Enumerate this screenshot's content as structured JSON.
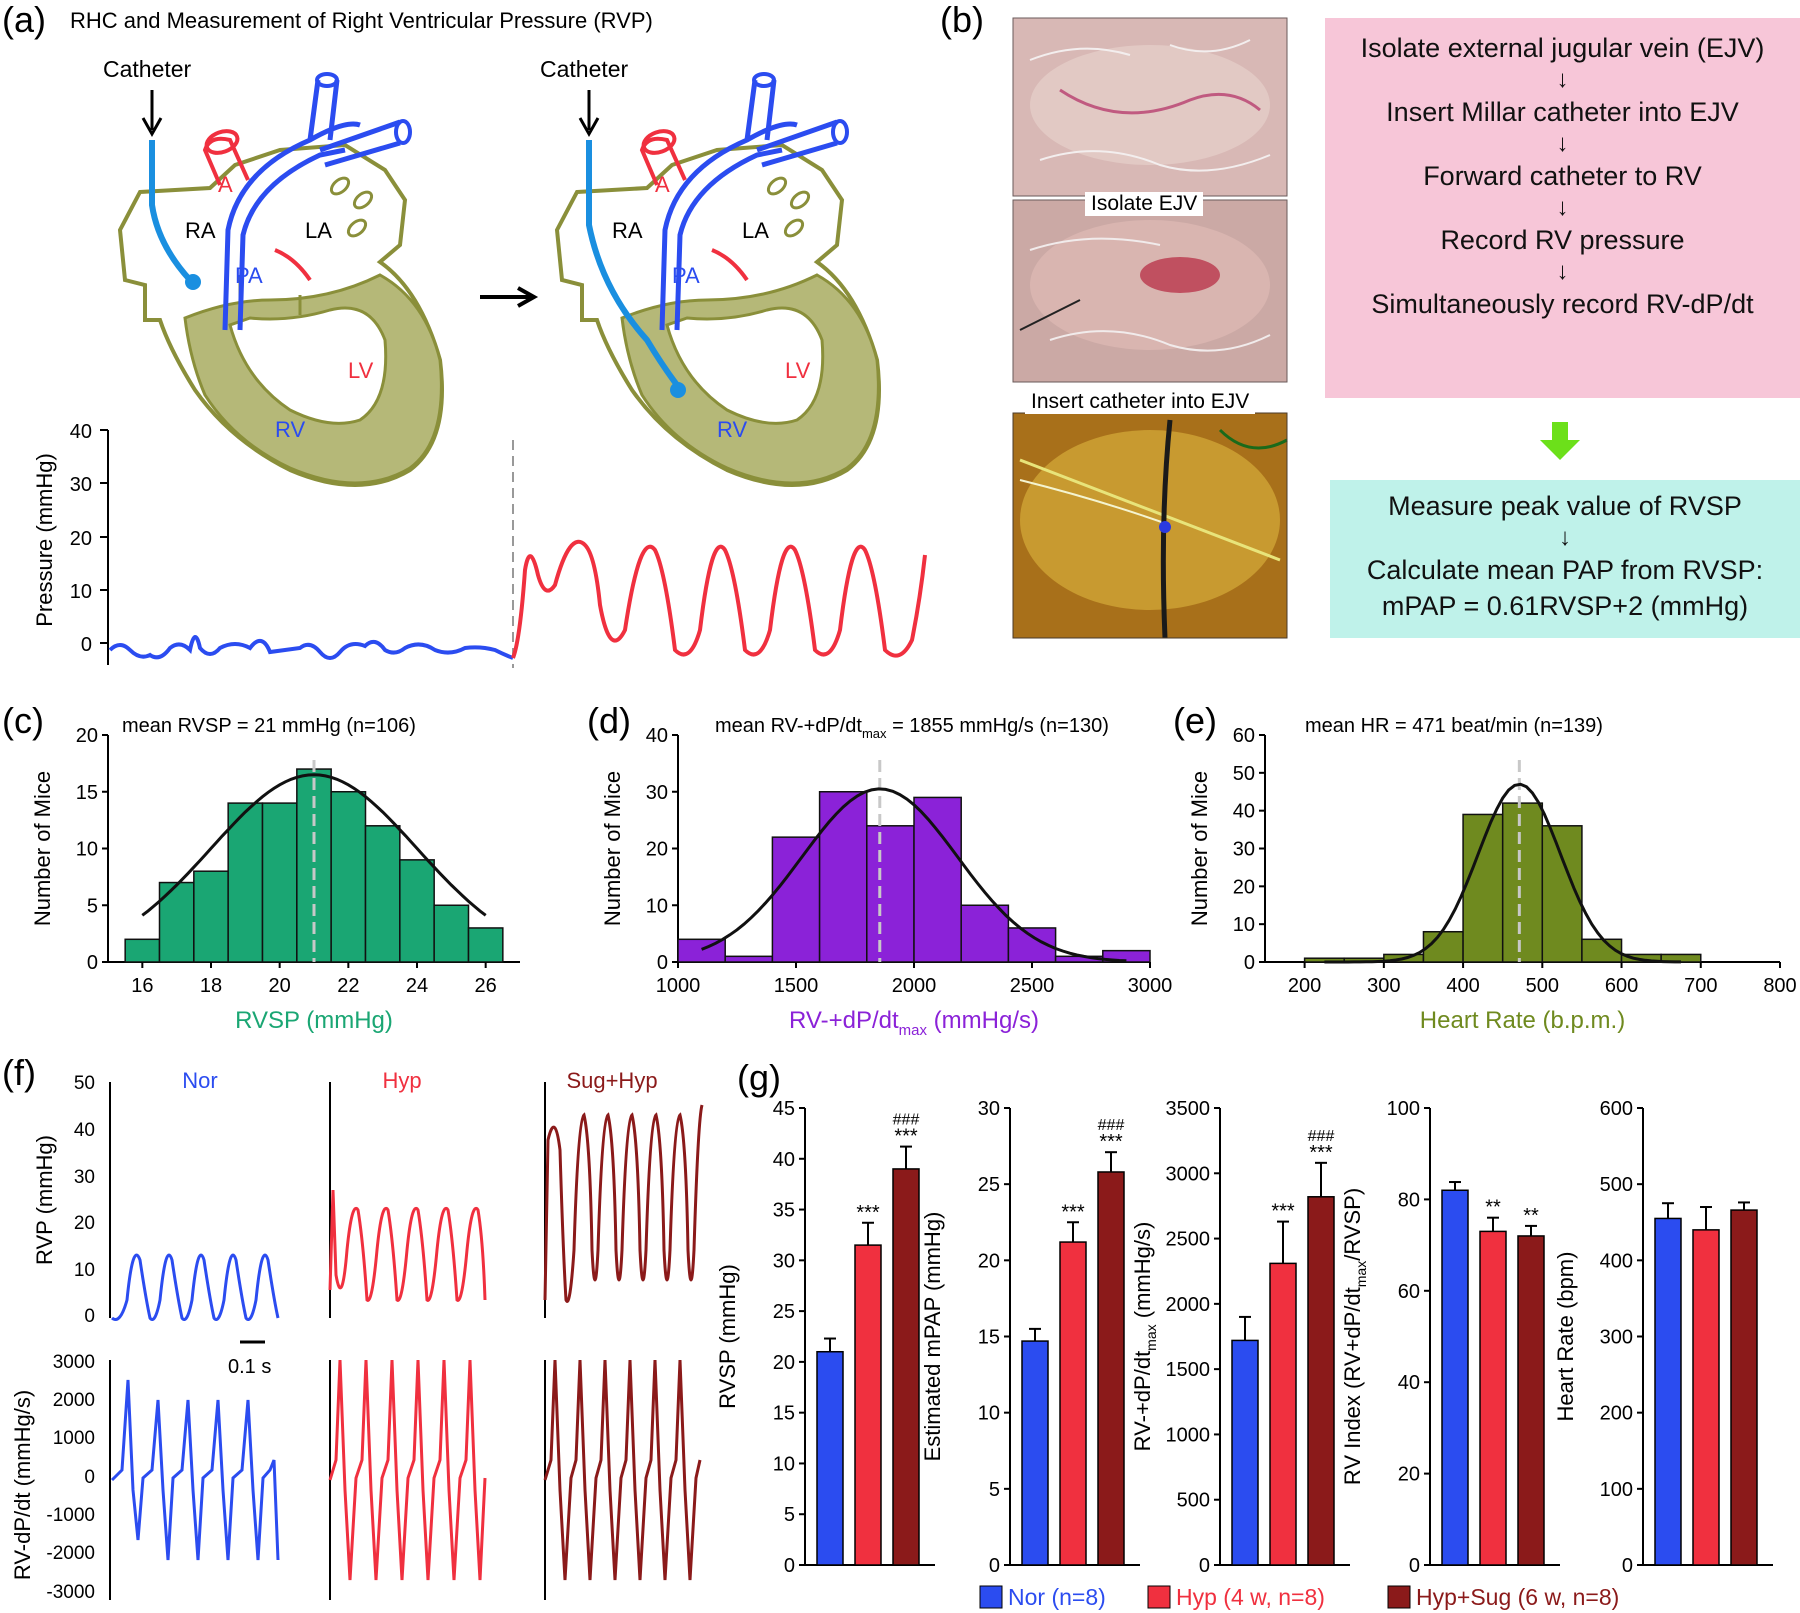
{
  "panels": {
    "a": {
      "label": "(a)",
      "title": "RHC and Measurement of Right Ventricular Pressure (RVP)",
      "catheter_label": "Catheter",
      "chambers": {
        "A": "A",
        "RA": "RA",
        "LA": "LA",
        "PA": "PA",
        "LV": "LV",
        "RV": "RV"
      },
      "pressure_axis": {
        "label": "Pressure (mmHg)",
        "ticks": [
          "40",
          "30",
          "20",
          "10",
          "0"
        ]
      }
    },
    "b": {
      "label": "(b)",
      "photo_captions": [
        "Isolate EJV",
        "Insert catheter into EJV"
      ],
      "protocol": [
        "Isolate external jugular vein (EJV)",
        "Insert Millar catheter into EJV",
        "Forward catheter to RV",
        "Record RV pressure",
        "Simultaneously record RV-dP/dt"
      ],
      "analysis": [
        "Measure peak value of RVSP",
        "Calculate mean PAP from RVSP:",
        "mPAP = 0.61RVSP+2 (mmHg)"
      ],
      "arrow": "↓",
      "transition_arrow_color": "#6ce01a"
    },
    "c": {
      "label": "(c)",
      "annotation": "mean RVSP = 21 mmHg (n=106)"
    },
    "d": {
      "label": "(d)",
      "annotation_prefix": "mean RV-+dP/dt",
      "annotation_sub": "max",
      "annotation_suffix": " = 1855 mmHg/s (n=130)"
    },
    "e": {
      "label": "(e)",
      "annotation": "mean HR = 471 beat/min (n=139)"
    },
    "f": {
      "label": "(f)",
      "groups": [
        "Nor",
        "Hyp",
        "Sug+Hyp"
      ],
      "rvp_axis": {
        "label": "RVP (mmHg)",
        "ticks": [
          "50",
          "40",
          "30",
          "20",
          "10",
          "0"
        ]
      },
      "dpdt_axis": {
        "label": "RV-dP/dt (mmHg/s)",
        "ticks": [
          "3000",
          "2000",
          "1000",
          "0",
          "-1000",
          "-2000",
          "-3000"
        ]
      },
      "scale_bar": "0.1 s"
    },
    "g": {
      "label": "(g)"
    }
  },
  "colors": {
    "nor": "#2b4cf0",
    "hyp": "#f0303f",
    "sug": "#8b1a1a",
    "olive": "#8a8f3a",
    "heart_fill": "#b5b878",
    "hist_c": "#1aa673",
    "hist_d": "#8b22d8",
    "hist_e": "#6f8a1f",
    "pink": "#f7c6d8",
    "cyan": "#bff2ea"
  },
  "legend": [
    "Nor (n=8)",
    "Hyp (4 w, n=8)",
    "Hyp+Sug (6 w, n=8)"
  ],
  "chart_data": [
    {
      "panel": "c",
      "type": "bar",
      "xlabel": "RVSP (mmHg)",
      "ylabel": "Number of Mice",
      "x": [
        16,
        17,
        18,
        19,
        20,
        21,
        22,
        23,
        24,
        25,
        26
      ],
      "values": [
        2,
        7,
        8,
        14,
        14,
        17,
        15,
        12,
        9,
        5,
        3
      ],
      "xlim": [
        15,
        27
      ],
      "ylim": [
        0,
        20
      ],
      "xticks": [
        16,
        18,
        20,
        22,
        24,
        26
      ],
      "yticks": [
        0,
        5,
        10,
        15,
        20
      ],
      "fit": {
        "mean": 21,
        "sd": 3.0,
        "peak": 16.5
      }
    },
    {
      "panel": "d",
      "type": "bar",
      "xlabel_prefix": "RV-+dP/dt",
      "xlabel_sub": "max",
      "xlabel_suffix": " (mmHg/s)",
      "ylabel": "Number of Mice",
      "x": [
        1100,
        1300,
        1500,
        1700,
        1900,
        2100,
        2300,
        2500,
        2700,
        2900
      ],
      "values": [
        4,
        1,
        22,
        30,
        24,
        29,
        10,
        6,
        1,
        2
      ],
      "xlim": [
        1000,
        3000
      ],
      "ylim": [
        0,
        40
      ],
      "xticks": [
        1000,
        1500,
        2000,
        2500,
        3000
      ],
      "yticks": [
        0,
        10,
        20,
        30,
        40
      ],
      "fit": {
        "mean": 1855,
        "sd": 330,
        "peak": 30.5
      }
    },
    {
      "panel": "e",
      "type": "bar",
      "xlabel": "Heart Rate (b.p.m.)",
      "ylabel": "Number of Mice",
      "x": [
        225,
        275,
        325,
        375,
        425,
        475,
        525,
        575,
        625,
        675
      ],
      "values": [
        1,
        1,
        2,
        8,
        39,
        42,
        36,
        6,
        2,
        2
      ],
      "xlim": [
        150,
        800
      ],
      "ylim": [
        0,
        60
      ],
      "xticks": [
        200,
        300,
        400,
        500,
        600,
        700,
        800
      ],
      "yticks": [
        0,
        10,
        20,
        30,
        40,
        50,
        60
      ],
      "fit": {
        "mean": 471,
        "sd": 52,
        "peak": 47
      }
    },
    {
      "panel": "g1",
      "type": "bar",
      "ylabel": "RVSP (mmHg)",
      "values": [
        21,
        31.5,
        39
      ],
      "errors": [
        1.3,
        2.2,
        2.2
      ],
      "ylim": [
        0,
        45
      ],
      "yticks": [
        0,
        5,
        10,
        15,
        20,
        25,
        30,
        35,
        40,
        45
      ],
      "significance": [
        "",
        "***",
        "***"
      ],
      "hash": [
        "",
        "",
        "###"
      ]
    },
    {
      "panel": "g2",
      "type": "bar",
      "ylabel": "Estimated mPAP (mmHg)",
      "values": [
        14.7,
        21.2,
        25.8
      ],
      "errors": [
        0.8,
        1.3,
        1.3
      ],
      "ylim": [
        0,
        30
      ],
      "yticks": [
        0,
        5,
        10,
        15,
        20,
        25,
        30
      ],
      "significance": [
        "",
        "***",
        "***"
      ],
      "hash": [
        "",
        "",
        "###"
      ]
    },
    {
      "panel": "g3",
      "type": "bar",
      "ylabel_prefix": "RV-+dP/dt",
      "ylabel_sub": "max",
      "ylabel_suffix": " (mmHg/s)",
      "values": [
        1720,
        2310,
        2820
      ],
      "errors": [
        180,
        320,
        260
      ],
      "ylim": [
        0,
        3500
      ],
      "yticks": [
        0,
        500,
        1000,
        1500,
        2000,
        2500,
        3000,
        3500
      ],
      "significance": [
        "",
        "***",
        "***"
      ],
      "hash": [
        "",
        "",
        "###"
      ]
    },
    {
      "panel": "g4",
      "type": "bar",
      "ylabel_prefix": "RV Index (RV+dP/dt",
      "ylabel_sub": "max",
      "ylabel_suffix": "/RVSP)",
      "values": [
        82,
        73,
        72
      ],
      "errors": [
        1.8,
        3,
        2.2
      ],
      "ylim": [
        0,
        100
      ],
      "yticks": [
        0,
        20,
        40,
        60,
        80,
        100
      ],
      "significance": [
        "",
        "**",
        "**"
      ],
      "hash": [
        "",
        "",
        ""
      ]
    },
    {
      "panel": "g5",
      "type": "bar",
      "ylabel": "Heart Rate (bpm)",
      "values": [
        455,
        440,
        466
      ],
      "errors": [
        20,
        30,
        10
      ],
      "ylim": [
        0,
        600
      ],
      "yticks": [
        0,
        100,
        200,
        300,
        400,
        500,
        600
      ],
      "significance": [
        "",
        "",
        ""
      ],
      "hash": [
        "",
        "",
        ""
      ]
    }
  ]
}
